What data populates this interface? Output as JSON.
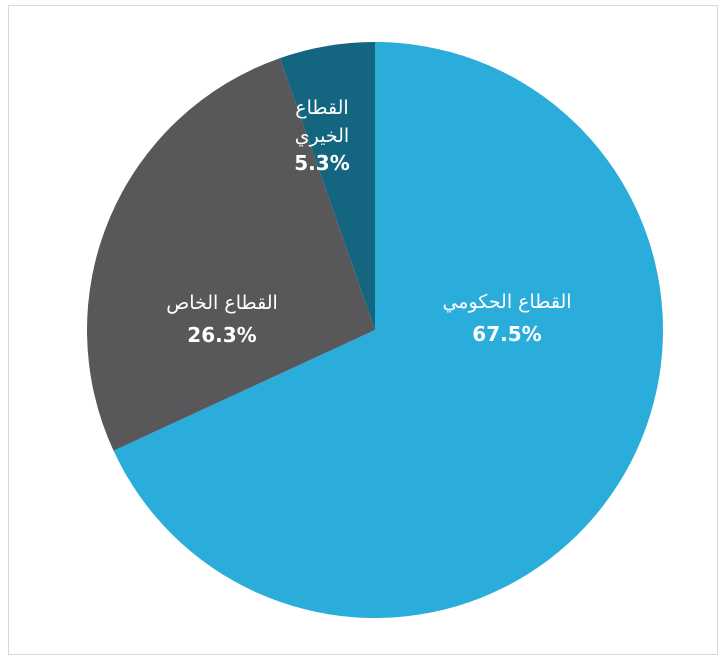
{
  "chart_data": {
    "type": "pie",
    "start_angle": "12 o'clock",
    "direction": "clockwise",
    "slices": [
      {
        "label_lines": [
          "القطاع الحكومي"
        ],
        "value": 67.5,
        "value_label": "67.5%",
        "color": "#2aaddb"
      },
      {
        "label_lines": [
          "القطاع الخاص"
        ],
        "value": 26.3,
        "value_label": "26.3%",
        "color": "#58585a"
      },
      {
        "label_lines": [
          "القطاع",
          "الخيري"
        ],
        "value": 5.3,
        "value_label": "5.3%",
        "color": "#146580"
      }
    ],
    "legend": "none",
    "border_color": "#d9d9d9"
  }
}
